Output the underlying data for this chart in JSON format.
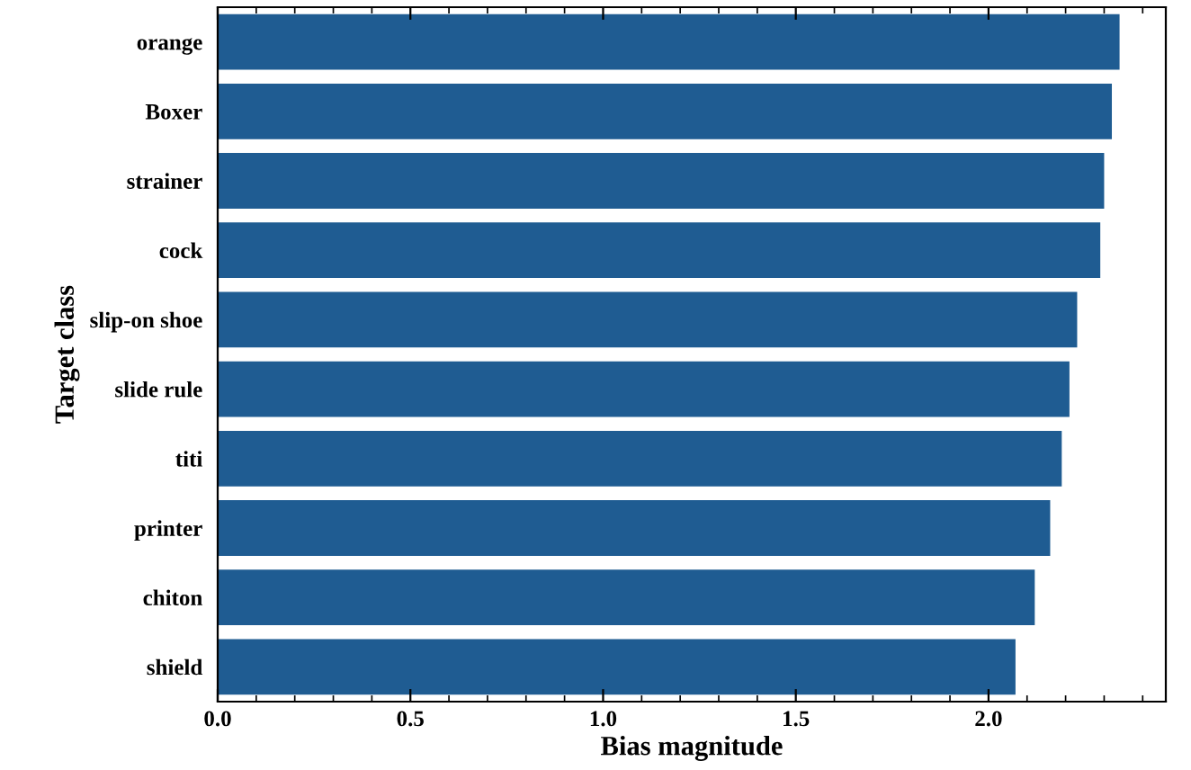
{
  "chart_data": {
    "type": "bar",
    "orientation": "horizontal",
    "xlabel": "Bias magnitude",
    "ylabel": "Target class",
    "categories": [
      "orange",
      "Boxer",
      "strainer",
      "cock",
      "slip-on shoe",
      "slide rule",
      "titi",
      "printer",
      "chiton",
      "shield"
    ],
    "values": [
      2.34,
      2.32,
      2.3,
      2.29,
      2.23,
      2.21,
      2.19,
      2.16,
      2.12,
      2.07
    ],
    "color": "#1f5c92",
    "xlim": [
      0,
      2.46
    ],
    "xticks": [
      {
        "value": 0,
        "label": "0.0"
      },
      0.5,
      {
        "value": 1,
        "label": "1.0"
      },
      1.5,
      {
        "value": 2,
        "label": "2.0"
      }
    ],
    "grid": false
  }
}
